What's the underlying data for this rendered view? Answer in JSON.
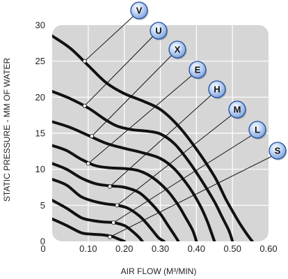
{
  "chart_data": {
    "type": "line",
    "title": "",
    "xlabel": "AIR FLOW (M³/MIN)",
    "ylabel": "STATIC PRESSURE - MM OF WATER",
    "xlim": [
      0,
      0.6
    ],
    "ylim": [
      0,
      30
    ],
    "x_ticks": [
      "0.10",
      "0.20",
      "0.30",
      "0.40",
      "0.50",
      "0.60"
    ],
    "y_ticks": [
      "0",
      "5",
      "10",
      "15",
      "20",
      "25",
      "30"
    ],
    "x_origin_label": "0",
    "grid": true,
    "colors": {
      "plot_background": "#d6d6d6",
      "grid": "#ffffff",
      "curve": "#111111",
      "badge_fill": "#a9c4ef",
      "badge_border": "#1f4f9f"
    },
    "series": [
      {
        "name": "V",
        "label_point": [
          0.09,
          25.0
        ],
        "x": [
          0,
          0.05,
          0.1,
          0.15,
          0.2,
          0.25,
          0.3,
          0.35,
          0.4,
          0.45,
          0.48,
          0.5,
          0.52,
          0.54,
          0.555
        ],
        "y": [
          28.5,
          26.8,
          24.4,
          22.0,
          20.5,
          19.5,
          18.3,
          16.0,
          12.8,
          9.0,
          6.0,
          4.2,
          2.5,
          1.0,
          0
        ]
      },
      {
        "name": "U",
        "label_point": [
          0.09,
          18.8
        ],
        "x": [
          0,
          0.05,
          0.1,
          0.15,
          0.18,
          0.22,
          0.26,
          0.3,
          0.34,
          0.38,
          0.42,
          0.45,
          0.47,
          0.49,
          0.5
        ],
        "y": [
          20.8,
          19.8,
          18.5,
          16.8,
          16.0,
          15.5,
          15.3,
          14.9,
          13.5,
          11.0,
          8.0,
          5.5,
          3.5,
          1.5,
          0
        ]
      },
      {
        "name": "X",
        "label_point": [
          0.11,
          14.6
        ],
        "x": [
          0,
          0.05,
          0.1,
          0.15,
          0.2,
          0.25,
          0.3,
          0.34,
          0.38,
          0.41,
          0.43,
          0.45
        ],
        "y": [
          16.6,
          15.8,
          14.7,
          13.6,
          12.9,
          12.3,
          11.5,
          10.0,
          7.5,
          5.0,
          2.8,
          0
        ]
      },
      {
        "name": "E",
        "label_point": [
          0.1,
          10.8
        ],
        "x": [
          0,
          0.04,
          0.08,
          0.12,
          0.16,
          0.2,
          0.24,
          0.28,
          0.32,
          0.35,
          0.37,
          0.39,
          0.4
        ],
        "y": [
          13.3,
          12.6,
          11.4,
          10.5,
          10.2,
          10.1,
          9.8,
          8.8,
          7.0,
          5.0,
          3.3,
          1.5,
          0
        ]
      },
      {
        "name": "H",
        "label_point": [
          0.16,
          7.6
        ],
        "x": [
          0,
          0.04,
          0.08,
          0.12,
          0.16,
          0.2,
          0.24,
          0.27,
          0.3,
          0.32,
          0.34,
          0.35
        ],
        "y": [
          10.8,
          10.0,
          8.8,
          8.0,
          7.7,
          7.5,
          6.8,
          5.5,
          3.8,
          2.3,
          0.8,
          0
        ]
      },
      {
        "name": "M",
        "label_point": [
          0.18,
          5.0
        ],
        "x": [
          0,
          0.04,
          0.08,
          0.12,
          0.15,
          0.18,
          0.21,
          0.24,
          0.26,
          0.28,
          0.295,
          0.31
        ],
        "y": [
          8.6,
          7.8,
          6.2,
          5.5,
          5.2,
          5.0,
          4.6,
          3.6,
          2.6,
          1.4,
          0.5,
          0
        ]
      },
      {
        "name": "L",
        "label_point": [
          0.17,
          2.6
        ],
        "x": [
          0,
          0.04,
          0.08,
          0.11,
          0.14,
          0.17,
          0.2,
          0.22,
          0.24,
          0.25
        ],
        "y": [
          5.7,
          4.6,
          3.3,
          2.9,
          2.7,
          2.6,
          2.2,
          1.5,
          0.6,
          0
        ]
      },
      {
        "name": "S",
        "label_point": [
          0.16,
          0.6
        ],
        "x": [
          0,
          0.04,
          0.08,
          0.11,
          0.14,
          0.165,
          0.185,
          0.2
        ],
        "y": [
          3.1,
          2.2,
          1.2,
          1.0,
          0.9,
          0.7,
          0.3,
          0
        ]
      }
    ]
  }
}
